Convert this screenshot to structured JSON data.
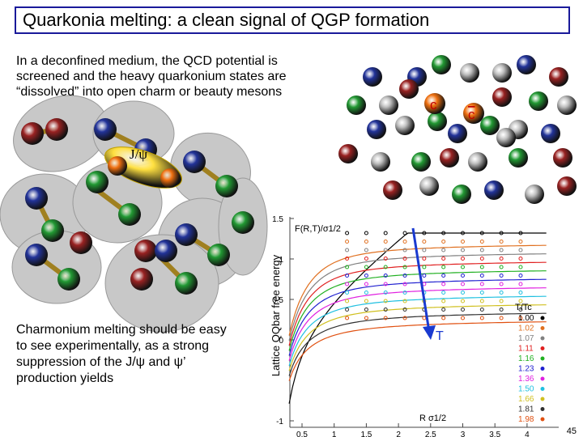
{
  "title": "Quarkonia melting: a clean signal of QGP formation",
  "intro_text": "In a deconfined medium, the QCD potential is screened and the heavy quarkonium states are “dissolved” into open charm or beauty mesons",
  "bottom_text": "Charmonium melting should be easy to see experimentally, as a strong suppression of the J/ψ and ψ’ production yields",
  "jpsi_label": "J/ψ",
  "quark_labels": [
    "c",
    "c"
  ],
  "plot": {
    "y_axis_label": "Lattice QQbar free energy",
    "inner_label": "F(R,T)/σ1/2",
    "x_label": "R σ1/2",
    "arrow_label": "T",
    "yticks": [
      "1.5",
      "1",
      "0.5",
      "0",
      "-1"
    ],
    "xticks": [
      "0.5",
      "1",
      "1.5",
      "2",
      "2.5",
      "3",
      "3.5",
      "4"
    ],
    "legend_title": "T/Tc",
    "legend": [
      {
        "label": "1.00",
        "color": "#000000"
      },
      {
        "label": "1.02",
        "color": "#e07020"
      },
      {
        "label": "1.07",
        "color": "#808080"
      },
      {
        "label": "1.11",
        "color": "#e02020"
      },
      {
        "label": "1.16",
        "color": "#20b020"
      },
      {
        "label": "1.23",
        "color": "#2020d0"
      },
      {
        "label": "1.36",
        "color": "#e020e0"
      },
      {
        "label": "1.50",
        "color": "#20c0e0"
      },
      {
        "label": "1.66",
        "color": "#d0c020"
      },
      {
        "label": "1.81",
        "color": "#303030"
      },
      {
        "label": "1.98",
        "color": "#e05010"
      }
    ]
  },
  "page_number": "45"
}
